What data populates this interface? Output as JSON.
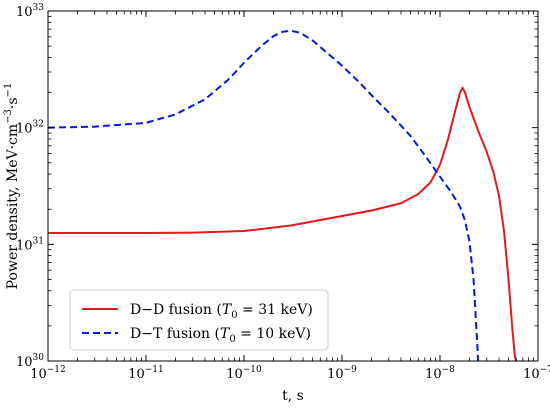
{
  "chart_data": {
    "type": "line",
    "xlabel": "t, s",
    "ylabel_parts": {
      "prefix": "Power density, MeV·cm",
      "exp1": "−3",
      "mid": "·s",
      "exp2": "−1"
    },
    "xscale": "log",
    "yscale": "log",
    "xlim": [
      1e-12,
      1e-07
    ],
    "ylim": [
      1e+30,
      1e+33
    ],
    "grid": false,
    "legend_position": "bottom-left",
    "x_ticks": [
      {
        "value": 1e-12,
        "base": "10",
        "exp": "−12"
      },
      {
        "value": 1e-11,
        "base": "10",
        "exp": "−11"
      },
      {
        "value": 1e-10,
        "base": "10",
        "exp": "−10"
      },
      {
        "value": 1e-09,
        "base": "10",
        "exp": "−9"
      },
      {
        "value": 1e-08,
        "base": "10",
        "exp": "−8"
      },
      {
        "value": 1e-07,
        "base": "10",
        "exp": "−7"
      }
    ],
    "y_ticks": [
      {
        "value": 1e+30,
        "base": "10",
        "exp": "30"
      },
      {
        "value": 1e+31,
        "base": "10",
        "exp": "31"
      },
      {
        "value": 1e+32,
        "base": "10",
        "exp": "32"
      },
      {
        "value": 1e+33,
        "base": "10",
        "exp": "33"
      }
    ],
    "series": [
      {
        "key": "dd",
        "color": "#e41a1c",
        "dash": "solid",
        "legend": {
          "prefix": "D−D fusion (",
          "sym": "T",
          "sub": "0",
          "suffix": " = 31 keV)"
        },
        "x": [
          1e-12,
          1e-11,
          3e-11,
          1e-10,
          3e-10,
          1e-09,
          2e-09,
          4e-09,
          6e-09,
          8e-09,
          1e-08,
          1.2e-08,
          1.4e-08,
          1.6e-08,
          1.7e-08,
          1.8e-08,
          2e-08,
          2.5e-08,
          3e-08,
          3.5e-08,
          4e-08,
          4.5e-08,
          5e-08,
          5.5e-08,
          5.8e-08,
          6e-08
        ],
        "y": [
          1.25e+31,
          1.25e+31,
          1.26e+31,
          1.3e+31,
          1.45e+31,
          1.75e+31,
          1.95e+31,
          2.25e+31,
          2.7e+31,
          3.4e+31,
          4.8e+31,
          7.8e+31,
          1.3e+32,
          2e+32,
          2.2e+32,
          2e+32,
          1.5e+32,
          9e+31,
          6.2e+31,
          4.2e+31,
          2.6e+31,
          1.3e+31,
          5e+30,
          1.8e+30,
          1.1e+30,
          1e+30
        ]
      },
      {
        "key": "dt",
        "color": "#0019e6",
        "dash": "dashed",
        "legend": {
          "prefix": "D−T fusion (",
          "sym": "T",
          "sub": "0",
          "suffix": " = 10 keV)"
        },
        "x": [
          1e-12,
          3e-12,
          1e-11,
          2e-11,
          4e-11,
          7e-11,
          1e-10,
          1.5e-10,
          2e-10,
          2.5e-10,
          3e-10,
          3.5e-10,
          4e-10,
          5e-10,
          7e-10,
          1e-09,
          1.5e-09,
          2e-09,
          3e-09,
          5e-09,
          7e-09,
          1e-08,
          1.3e-08,
          1.6e-08,
          1.8e-08,
          2e-08,
          2.2e-08,
          2.3e-08,
          2.4e-08,
          2.45e-08
        ],
        "y": [
          1e+32,
          1.02e+32,
          1.1e+32,
          1.3e+32,
          1.75e+32,
          2.6e+32,
          3.6e+32,
          5e+32,
          6.1e+32,
          6.65e+32,
          6.75e+32,
          6.6e+32,
          6.3e+32,
          5.6e+32,
          4.4e+32,
          3.4e+32,
          2.45e+32,
          1.9e+32,
          1.35e+32,
          8.5e+31,
          5.8e+31,
          3.8e+31,
          2.8e+31,
          2.1e+31,
          1.6e+31,
          1.05e+31,
          5e+30,
          2.6e+30,
          1.4e+30,
          1e+30
        ]
      }
    ]
  }
}
